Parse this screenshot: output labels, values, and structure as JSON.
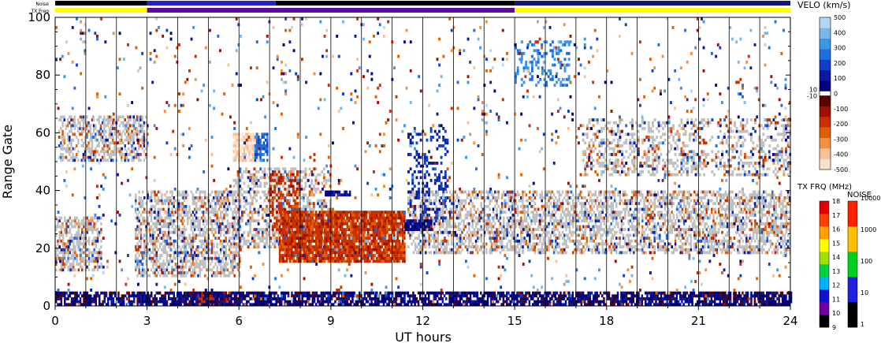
{
  "chart_data": {
    "type": "heatmap",
    "title": "",
    "xlabel": "UT hours",
    "ylabel": "Range Gate",
    "xlim": [
      0,
      24
    ],
    "ylim": [
      0,
      100
    ],
    "x_ticks": [
      0,
      3,
      6,
      9,
      12,
      15,
      18,
      21,
      24
    ],
    "y_ticks": [
      0,
      20,
      40,
      60,
      80,
      100
    ],
    "status_bars": {
      "noise_label": "Noise",
      "txfreq_label": "TX Freq",
      "txfreq_segments": [
        {
          "start": 0,
          "end": 3,
          "color": "#ffff00"
        },
        {
          "start": 3,
          "end": 15,
          "color": "#5a0aa0"
        },
        {
          "start": 15,
          "end": 24,
          "color": "#ffff00"
        }
      ],
      "noise_segments": [
        {
          "start": 0,
          "end": 3,
          "color": "#000000"
        },
        {
          "start": 3,
          "end": 7.2,
          "color": "#2a20c8"
        },
        {
          "start": 7.2,
          "end": 15,
          "color": "#000000"
        },
        {
          "start": 15,
          "end": 24,
          "color": "#141478"
        }
      ]
    },
    "groundscatter_color": "#c0c0c0",
    "regions": [
      {
        "kind": "gs",
        "x0": 0.1,
        "x1": 3.0,
        "y0": 50,
        "y1": 66,
        "density": 0.55
      },
      {
        "kind": "gs",
        "x0": 0.0,
        "x1": 1.5,
        "y0": 12,
        "y1": 31,
        "density": 0.6
      },
      {
        "kind": "gs",
        "x0": 2.6,
        "x1": 6.0,
        "y0": 10,
        "y1": 40,
        "density": 0.6
      },
      {
        "kind": "gs",
        "x0": 5.8,
        "x1": 9.0,
        "y0": 20,
        "y1": 48,
        "density": 0.45
      },
      {
        "kind": "gs",
        "x0": 11.5,
        "x1": 24.0,
        "y0": 18,
        "y1": 40,
        "density": 0.55
      },
      {
        "kind": "gs",
        "x0": 17.2,
        "x1": 24.0,
        "y0": 45,
        "y1": 65,
        "density": 0.35
      },
      {
        "kind": "vel",
        "x0": 7.3,
        "x1": 11.4,
        "y0": 15,
        "y1": 33,
        "density": 0.9,
        "v": -180
      },
      {
        "kind": "vel",
        "x0": 7.0,
        "x1": 8.0,
        "y0": 26,
        "y1": 46,
        "density": 0.45,
        "v": -170
      },
      {
        "kind": "vel",
        "x0": 5.8,
        "x1": 6.6,
        "y0": 50,
        "y1": 60,
        "density": 0.8,
        "v": -430
      },
      {
        "kind": "vel",
        "x0": 6.5,
        "x1": 6.9,
        "y0": 50,
        "y1": 60,
        "density": 0.7,
        "v": 240
      },
      {
        "kind": "vel",
        "x0": 4.4,
        "x1": 5.7,
        "y0": 0,
        "y1": 5,
        "density": 0.95,
        "v": -160
      },
      {
        "kind": "vel",
        "x0": 11.4,
        "x1": 12.3,
        "y0": 26,
        "y1": 30,
        "density": 0.9,
        "v": 60
      },
      {
        "kind": "vel",
        "x0": 11.5,
        "x1": 12.8,
        "y0": 30,
        "y1": 62,
        "density": 0.28,
        "v": 140
      },
      {
        "kind": "vel",
        "x0": 8.8,
        "x1": 9.6,
        "y0": 38,
        "y1": 40,
        "density": 0.8,
        "v": 60
      },
      {
        "kind": "vel",
        "x0": 15.0,
        "x1": 16.8,
        "y0": 76,
        "y1": 92,
        "density": 0.3,
        "v": 300
      },
      {
        "kind": "vel",
        "x0": 0.0,
        "x1": 24.0,
        "y0": 0,
        "y1": 5,
        "density": 0.75,
        "v": 40
      },
      {
        "kind": "vel",
        "x0": 0.0,
        "x1": 24.0,
        "y0": 0,
        "y1": 100,
        "density": 0.03,
        "v": 0
      }
    ],
    "velocity_colorbar": {
      "label": "VELO (km/s)",
      "tick_labels": [
        "500",
        "400",
        "300",
        "200",
        "100",
        "0",
        "-100",
        "-200",
        "-300",
        "-400",
        "-500"
      ],
      "extra_labels": [
        "10",
        "-10"
      ],
      "min": -500,
      "max": 500,
      "positive_colors": [
        "#00007a",
        "#0a1aa0",
        "#1040c8",
        "#1e6ee0",
        "#3c96e8",
        "#78b8ec",
        "#b4d8f4"
      ],
      "negative_colors": [
        "#5a0000",
        "#a01000",
        "#c83000",
        "#e06000",
        "#f09040",
        "#f8c098",
        "#fce0c8"
      ]
    },
    "txfreq_colorbar": {
      "label": "TX FRQ (MHz)",
      "tick_labels": [
        "9",
        "10",
        "11",
        "12",
        "13",
        "14",
        "15",
        "16",
        "17",
        "18"
      ],
      "colors": [
        "#000000",
        "#7000a0",
        "#1010d0",
        "#00b0ff",
        "#00d040",
        "#a0e000",
        "#ffff00",
        "#ffa000",
        "#ff4000",
        "#e00000"
      ]
    },
    "noise_colorbar": {
      "label": "NOISE",
      "tick_labels": [
        "1",
        "10",
        "100",
        "1000",
        "10000"
      ],
      "colors": [
        "#000000",
        "#2020e0",
        "#00d020",
        "#ffc000",
        "#ff2000"
      ]
    }
  }
}
